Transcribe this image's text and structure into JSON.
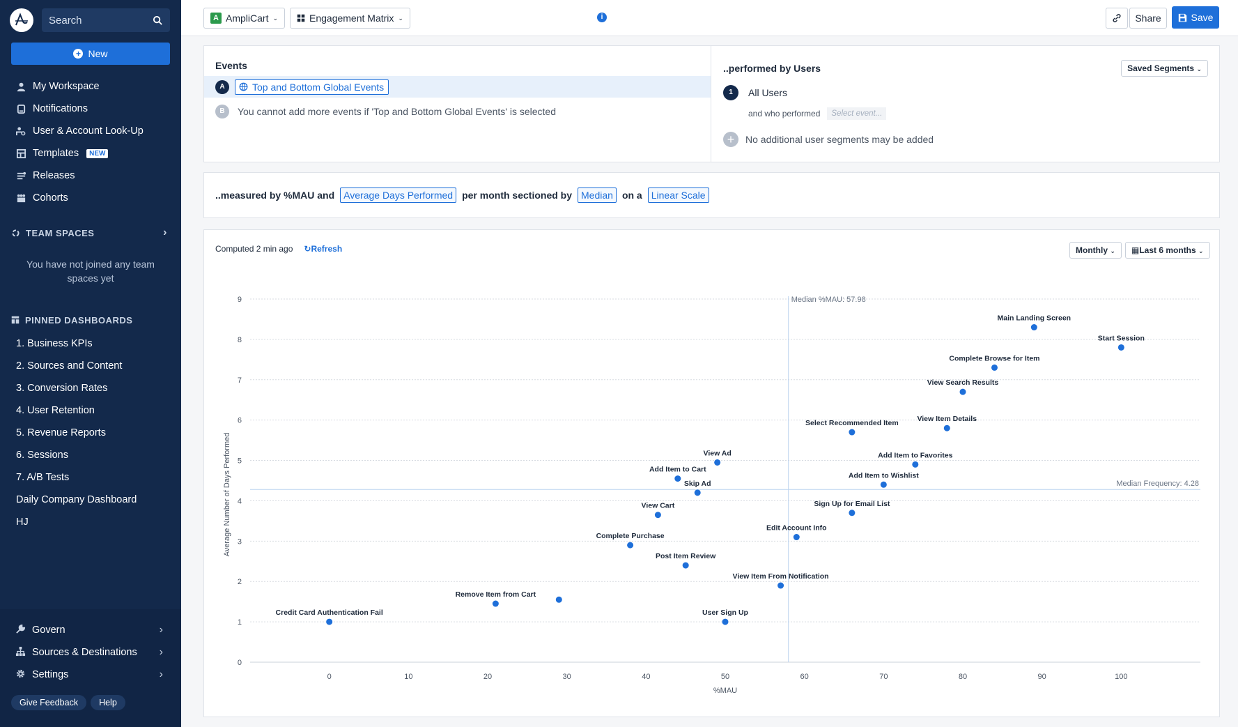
{
  "sidebar": {
    "search_placeholder": "Search",
    "new_label": "New",
    "nav": [
      {
        "label": "My Workspace",
        "icon": "person-icon"
      },
      {
        "label": "Notifications",
        "icon": "bell-icon"
      },
      {
        "label": "User & Account Look-Up",
        "icon": "lookup-icon"
      },
      {
        "label": "Templates",
        "icon": "template-icon",
        "badge": "NEW"
      },
      {
        "label": "Releases",
        "icon": "release-icon"
      },
      {
        "label": "Cohorts",
        "icon": "cohort-icon"
      }
    ],
    "team_spaces_title": "TEAM SPACES",
    "team_spaces_empty": "You have not joined any team spaces yet",
    "pinned_title": "PINNED DASHBOARDS",
    "dashboards": [
      "1. Business KPIs",
      "2. Sources and Content",
      "3. Conversion Rates",
      "4. User Retention",
      "5. Revenue Reports",
      "6. Sessions",
      "7. A/B Tests",
      "Daily Company Dashboard",
      "HJ"
    ],
    "bottom": [
      {
        "label": "Govern",
        "icon": "wrench-icon"
      },
      {
        "label": "Sources & Destinations",
        "icon": "network-icon"
      },
      {
        "label": "Settings",
        "icon": "gear-icon"
      }
    ],
    "feedback_label": "Give Feedback",
    "help_label": "Help"
  },
  "topbar": {
    "project_badge": "A",
    "project_name": "AmpliCart",
    "chart_type": "Engagement Matrix",
    "share_label": "Share",
    "save_label": "Save"
  },
  "events": {
    "title": "Events",
    "row_a_letter": "A",
    "row_a_event": "Top and Bottom Global Events",
    "row_b_letter": "B",
    "row_b_text": "You cannot add more events if 'Top and Bottom Global Events' is selected"
  },
  "segments": {
    "title": "..performed by Users",
    "saved_segments_label": "Saved Segments",
    "segment_number": "1",
    "segment_name": "All Users",
    "who_performed": "and who performed",
    "select_event_placeholder": "Select event...",
    "no_more": "No additional user segments may be added"
  },
  "measure": {
    "prefix": "..measured by %MAU and",
    "metric": "Average Days Performed",
    "middle": "per month sectioned by",
    "section": "Median",
    "on_a": "on a",
    "scale": "Linear Scale"
  },
  "chart_header": {
    "computed": "Computed 2 min ago",
    "refresh": "Refresh",
    "interval": "Monthly",
    "range": "Last 6 months"
  },
  "chart_data": {
    "type": "scatter",
    "xlabel": "%MAU",
    "ylabel": "Average Number of Days Performed",
    "xlim": [
      -10,
      110
    ],
    "ylim": [
      0,
      9
    ],
    "xticks": [
      0,
      10,
      20,
      30,
      40,
      50,
      60,
      70,
      80,
      90,
      100
    ],
    "yticks": [
      0,
      1,
      2,
      3,
      4,
      5,
      6,
      7,
      8,
      9
    ],
    "median_x": 57.98,
    "median_y": 4.28,
    "median_x_label": "Median %MAU: 57.98",
    "median_y_label": "Median Frequency: 4.28",
    "point_color": "#1e6fd9",
    "points": [
      {
        "name": "Main Landing Screen",
        "x": 89,
        "y": 8.3
      },
      {
        "name": "Start Session",
        "x": 100,
        "y": 7.8
      },
      {
        "name": "Complete Browse for Item",
        "x": 84,
        "y": 7.3
      },
      {
        "name": "View Search Results",
        "x": 80,
        "y": 6.7
      },
      {
        "name": "View Item Details",
        "x": 78,
        "y": 5.8
      },
      {
        "name": "Select Recommended Item",
        "x": 66,
        "y": 5.7
      },
      {
        "name": "Add Item to Favorites",
        "x": 74,
        "y": 4.9
      },
      {
        "name": "Add Item to Wishlist",
        "x": 70,
        "y": 4.4
      },
      {
        "name": "Sign Up for Email List",
        "x": 66,
        "y": 3.7
      },
      {
        "name": "Edit Account Info",
        "x": 59,
        "y": 3.1
      },
      {
        "name": "View Item From Notification",
        "x": 57,
        "y": 1.9
      },
      {
        "name": "User Sign Up",
        "x": 50,
        "y": 1.0
      },
      {
        "name": "View Ad",
        "x": 49,
        "y": 4.95
      },
      {
        "name": "Add Item to Cart",
        "x": 44,
        "y": 4.55
      },
      {
        "name": "Skip Ad",
        "x": 46.5,
        "y": 4.2
      },
      {
        "name": "View Cart",
        "x": 41.5,
        "y": 3.65
      },
      {
        "name": "Complete Purchase",
        "x": 38,
        "y": 2.9
      },
      {
        "name": "Post Item Review",
        "x": 45,
        "y": 2.4
      },
      {
        "name": "Remove Item from Cart",
        "x": 21,
        "y": 1.45
      },
      {
        "name": "",
        "x": 29,
        "y": 1.55
      },
      {
        "name": "Credit Card Authentication Fail",
        "x": 0,
        "y": 1.0
      }
    ]
  }
}
